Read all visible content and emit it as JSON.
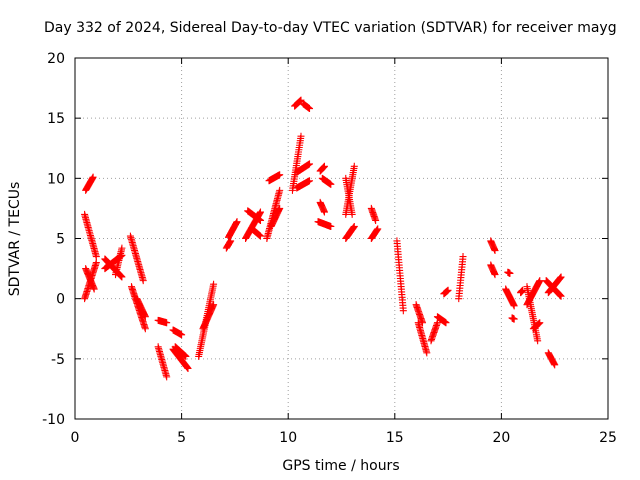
{
  "chart_data": {
    "type": "scatter",
    "title": "Day 332 of 2024, Sidereal Day-to-day VTEC variation (SDTVAR) for receiver mayg",
    "xlabel": "GPS time / hours",
    "ylabel": "SDTVAR / TECUs",
    "xlim": [
      0,
      25
    ],
    "ylim": [
      -10,
      20
    ],
    "xticks": [
      0,
      5,
      10,
      15,
      20,
      25
    ],
    "yticks": [
      -10,
      -5,
      0,
      5,
      10,
      15,
      20
    ],
    "xtick_labels": [
      "0",
      "5",
      "10",
      "15",
      "20",
      "25"
    ],
    "ytick_labels": [
      "-10",
      "-5",
      "0",
      "5",
      "10",
      "15",
      "20"
    ],
    "grid": true,
    "marker": "plus",
    "color": "#ff0000",
    "segments": [
      {
        "x0": 0.45,
        "y0": 0.0,
        "x1": 1.0,
        "y1": 3.0
      },
      {
        "x0": 0.5,
        "y0": 2.5,
        "x1": 0.9,
        "y1": 0.8
      },
      {
        "x0": 0.5,
        "y0": 9.0,
        "x1": 0.85,
        "y1": 10.1
      },
      {
        "x0": 0.45,
        "y0": 7.0,
        "x1": 1.0,
        "y1": 3.5
      },
      {
        "x0": 1.4,
        "y0": 2.5,
        "x1": 2.2,
        "y1": 3.6
      },
      {
        "x0": 1.4,
        "y0": 3.3,
        "x1": 2.2,
        "y1": 1.8
      },
      {
        "x0": 1.9,
        "y0": 2.0,
        "x1": 2.2,
        "y1": 4.2
      },
      {
        "x0": 2.6,
        "y0": 5.2,
        "x1": 3.2,
        "y1": 1.5
      },
      {
        "x0": 2.65,
        "y0": 1.0,
        "x1": 3.3,
        "y1": -2.5
      },
      {
        "x0": 2.9,
        "y0": 0.0,
        "x1": 3.3,
        "y1": -1.5
      },
      {
        "x0": 3.9,
        "y0": -4.0,
        "x1": 4.3,
        "y1": -6.5
      },
      {
        "x0": 3.9,
        "y0": -1.8,
        "x1": 4.3,
        "y1": -2.0
      },
      {
        "x0": 4.6,
        "y0": -4.2,
        "x1": 5.3,
        "y1": -5.8
      },
      {
        "x0": 4.6,
        "y0": -2.6,
        "x1": 5.0,
        "y1": -3.0
      },
      {
        "x0": 4.7,
        "y0": -4.0,
        "x1": 5.2,
        "y1": -4.8
      },
      {
        "x0": 5.8,
        "y0": -4.8,
        "x1": 6.5,
        "y1": 1.2
      },
      {
        "x0": 6.0,
        "y0": -2.5,
        "x1": 6.5,
        "y1": -0.5
      },
      {
        "x0": 7.1,
        "y0": 4.2,
        "x1": 7.3,
        "y1": 4.8
      },
      {
        "x0": 7.2,
        "y0": 5.1,
        "x1": 7.6,
        "y1": 6.4
      },
      {
        "x0": 8.0,
        "y0": 5.0,
        "x1": 8.7,
        "y1": 7.2
      },
      {
        "x0": 8.1,
        "y0": 7.3,
        "x1": 8.7,
        "y1": 6.5
      },
      {
        "x0": 8.3,
        "y0": 5.8,
        "x1": 8.7,
        "y1": 5.2
      },
      {
        "x0": 9.0,
        "y0": 5.0,
        "x1": 9.6,
        "y1": 9.0
      },
      {
        "x0": 9.1,
        "y0": 9.8,
        "x1": 9.6,
        "y1": 10.3
      },
      {
        "x0": 9.2,
        "y0": 6.0,
        "x1": 9.6,
        "y1": 7.5
      },
      {
        "x0": 10.2,
        "y0": 9.0,
        "x1": 10.6,
        "y1": 13.5
      },
      {
        "x0": 10.3,
        "y0": 16.0,
        "x1": 10.6,
        "y1": 16.5
      },
      {
        "x0": 10.7,
        "y0": 16.2,
        "x1": 11.0,
        "y1": 15.8
      },
      {
        "x0": 10.4,
        "y0": 10.5,
        "x1": 11.0,
        "y1": 11.2
      },
      {
        "x0": 10.4,
        "y0": 9.2,
        "x1": 11.0,
        "y1": 9.8
      },
      {
        "x0": 11.5,
        "y0": 8.0,
        "x1": 11.7,
        "y1": 7.2
      },
      {
        "x0": 11.4,
        "y0": 6.4,
        "x1": 12.0,
        "y1": 6.0
      },
      {
        "x0": 11.5,
        "y0": 10.6,
        "x1": 11.7,
        "y1": 11.0
      },
      {
        "x0": 11.6,
        "y0": 10.0,
        "x1": 12.0,
        "y1": 9.5
      },
      {
        "x0": 12.7,
        "y0": 5.0,
        "x1": 13.1,
        "y1": 6.0
      },
      {
        "x0": 12.7,
        "y0": 7.0,
        "x1": 13.1,
        "y1": 11.0
      },
      {
        "x0": 12.7,
        "y0": 10.0,
        "x1": 13.0,
        "y1": 7.0
      },
      {
        "x0": 13.9,
        "y0": 7.5,
        "x1": 14.1,
        "y1": 6.5
      },
      {
        "x0": 13.9,
        "y0": 5.0,
        "x1": 14.2,
        "y1": 5.8
      },
      {
        "x0": 15.1,
        "y0": 4.8,
        "x1": 15.4,
        "y1": -1.0
      },
      {
        "x0": 16.1,
        "y0": -2.0,
        "x1": 16.5,
        "y1": -4.5
      },
      {
        "x0": 16.0,
        "y0": -0.5,
        "x1": 16.3,
        "y1": -2.0
      },
      {
        "x0": 16.7,
        "y0": -3.5,
        "x1": 17.0,
        "y1": -2.0
      },
      {
        "x0": 17.0,
        "y0": -1.5,
        "x1": 17.4,
        "y1": -2.0
      },
      {
        "x0": 17.3,
        "y0": 0.4,
        "x1": 17.5,
        "y1": 0.7
      },
      {
        "x0": 18.0,
        "y0": 0.0,
        "x1": 18.2,
        "y1": 3.5
      },
      {
        "x0": 19.5,
        "y0": 4.8,
        "x1": 19.7,
        "y1": 4.0
      },
      {
        "x0": 19.5,
        "y0": 2.8,
        "x1": 19.7,
        "y1": 2.0
      },
      {
        "x0": 20.3,
        "y0": 2.2,
        "x1": 20.4,
        "y1": 2.1
      },
      {
        "x0": 20.2,
        "y0": 0.8,
        "x1": 20.6,
        "y1": -0.6
      },
      {
        "x0": 20.5,
        "y0": -1.6,
        "x1": 20.6,
        "y1": -1.7
      },
      {
        "x0": 20.9,
        "y0": 0.5,
        "x1": 21.0,
        "y1": 0.7
      },
      {
        "x0": 21.2,
        "y0": 1.0,
        "x1": 21.7,
        "y1": -3.5
      },
      {
        "x0": 21.2,
        "y0": -0.5,
        "x1": 21.8,
        "y1": 1.5
      },
      {
        "x0": 21.5,
        "y0": -2.5,
        "x1": 21.8,
        "y1": -2.0
      },
      {
        "x0": 22.2,
        "y0": -4.5,
        "x1": 22.5,
        "y1": -5.5
      },
      {
        "x0": 22.1,
        "y0": 1.5,
        "x1": 22.8,
        "y1": 0.2
      },
      {
        "x0": 22.2,
        "y0": 0.5,
        "x1": 22.8,
        "y1": 1.8
      }
    ]
  }
}
